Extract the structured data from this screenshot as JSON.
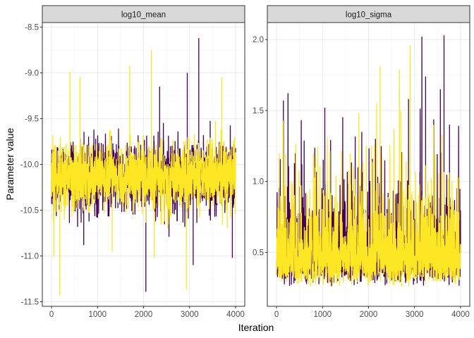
{
  "chart_data": {
    "type": "line",
    "xlabel": "Iteration",
    "ylabel": "Parameter value",
    "grid": true,
    "legend": "none",
    "colors": {
      "chain_1": "#440154",
      "chain_2": "#fde725",
      "strip_fill": "#d9d9d9",
      "panel_border": "#333333",
      "grid_major": "#ebebeb",
      "grid_minor": "#f5f5f5",
      "tick_text": "#4d4d4d"
    },
    "panels": [
      {
        "strip_label": "log10_mean",
        "xlim": [
          -200,
          4200
        ],
        "ylim": [
          -11.55,
          -8.45
        ],
        "x_ticks": [
          0,
          1000,
          2000,
          3000,
          4000
        ],
        "y_ticks": [
          -11.5,
          -11.0,
          -10.5,
          -10.0,
          -9.5,
          -9.0,
          -8.5
        ],
        "y_tick_labels": [
          "-11.5",
          "-11.0",
          "-10.5",
          "-10.0",
          "-9.5",
          "-9.0",
          "-8.5"
        ],
        "chain_summary": {
          "center": -10.13,
          "typical_low": -10.4,
          "typical_high": -9.85,
          "min": -11.43,
          "max": -8.62
        },
        "spikes": [
          {
            "iteration": 180,
            "value": -11.43,
            "chain": 2
          },
          {
            "iteration": 50,
            "value": -11.0,
            "chain": 2
          },
          {
            "iteration": 700,
            "value": -10.88,
            "chain": 1
          },
          {
            "iteration": 1320,
            "value": -10.95,
            "chain": 2
          },
          {
            "iteration": 2050,
            "value": -11.39,
            "chain": 1
          },
          {
            "iteration": 2230,
            "value": -11.02,
            "chain": 2
          },
          {
            "iteration": 2930,
            "value": -11.37,
            "chain": 2
          },
          {
            "iteration": 3080,
            "value": -11.1,
            "chain": 1
          },
          {
            "iteration": 3930,
            "value": -11.02,
            "chain": 1
          },
          {
            "iteration": 400,
            "value": -8.99,
            "chain": 2
          },
          {
            "iteration": 620,
            "value": -9.05,
            "chain": 2
          },
          {
            "iteration": 1700,
            "value": -8.92,
            "chain": 2
          },
          {
            "iteration": 2170,
            "value": -8.75,
            "chain": 2
          },
          {
            "iteration": 2350,
            "value": -9.15,
            "chain": 1
          },
          {
            "iteration": 2950,
            "value": -9.0,
            "chain": 1
          },
          {
            "iteration": 3200,
            "value": -8.62,
            "chain": 1
          },
          {
            "iteration": 3700,
            "value": -9.05,
            "chain": 2
          }
        ]
      },
      {
        "strip_label": "log10_sigma",
        "xlim": [
          -200,
          4200
        ],
        "ylim": [
          0.12,
          2.12
        ],
        "x_ticks": [
          0,
          1000,
          2000,
          3000,
          4000
        ],
        "y_ticks": [
          0.5,
          1.0,
          1.5,
          2.0
        ],
        "y_tick_labels": [
          "0.5",
          "1.0",
          "1.5",
          "2.0"
        ],
        "chain_summary": {
          "center": 0.48,
          "typical_low": 0.3,
          "typical_high": 0.7,
          "min": 0.2,
          "max": 2.03
        },
        "spikes": [
          {
            "iteration": 150,
            "value": 1.57,
            "chain": 1
          },
          {
            "iteration": 60,
            "value": 1.2,
            "chain": 2
          },
          {
            "iteration": 1050,
            "value": 1.52,
            "chain": 1
          },
          {
            "iteration": 2250,
            "value": 1.81,
            "chain": 2
          },
          {
            "iteration": 2150,
            "value": 1.3,
            "chain": 1
          },
          {
            "iteration": 2870,
            "value": 1.58,
            "chain": 1
          },
          {
            "iteration": 3240,
            "value": 1.74,
            "chain": 1
          },
          {
            "iteration": 3640,
            "value": 2.03,
            "chain": 1
          },
          {
            "iteration": 3560,
            "value": 1.65,
            "chain": 1
          },
          {
            "iteration": 2700,
            "value": 1.5,
            "chain": 2
          },
          {
            "iteration": 3410,
            "value": 1.4,
            "chain": 2
          },
          {
            "iteration": 3760,
            "value": 1.4,
            "chain": 1
          },
          {
            "iteration": 800,
            "value": 1.2,
            "chain": 2
          },
          {
            "iteration": 1950,
            "value": 1.25,
            "chain": 2
          }
        ]
      }
    ]
  }
}
